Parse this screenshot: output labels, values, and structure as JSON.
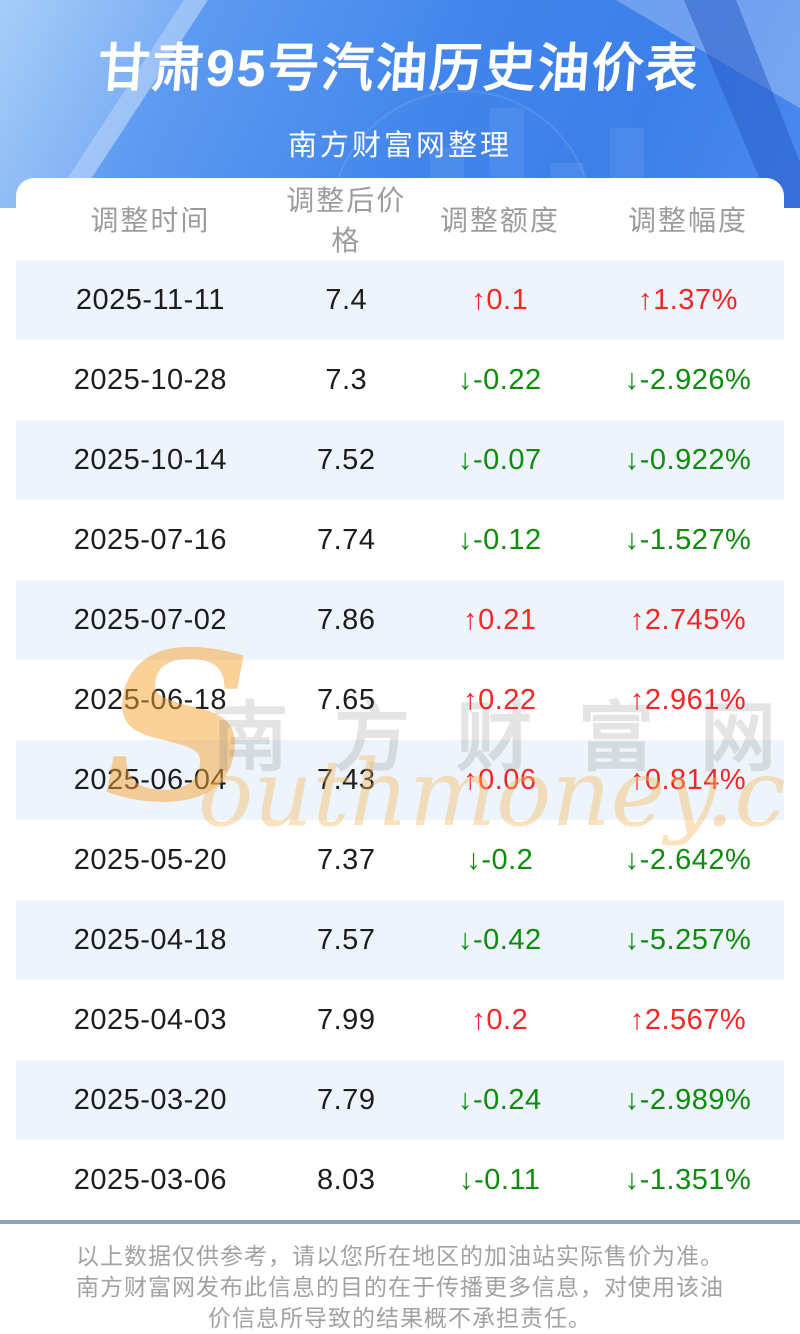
{
  "hero": {
    "title": "甘肃95号汽油历史油价表",
    "subtitle": "南方财富网整理"
  },
  "chart_data": {
    "type": "table",
    "title": "甘肃95号汽油历史油价表",
    "columns": [
      "调整时间",
      "调整后价格",
      "调整额度",
      "调整幅度"
    ],
    "rows": [
      {
        "date": "2025-11-11",
        "price": "7.4",
        "change": "↑0.1",
        "pct": "↑1.37%",
        "direction": "up"
      },
      {
        "date": "2025-10-28",
        "price": "7.3",
        "change": "↓-0.22",
        "pct": "↓-2.926%",
        "direction": "down"
      },
      {
        "date": "2025-10-14",
        "price": "7.52",
        "change": "↓-0.07",
        "pct": "↓-0.922%",
        "direction": "down"
      },
      {
        "date": "2025-07-16",
        "price": "7.74",
        "change": "↓-0.12",
        "pct": "↓-1.527%",
        "direction": "down"
      },
      {
        "date": "2025-07-02",
        "price": "7.86",
        "change": "↑0.21",
        "pct": "↑2.745%",
        "direction": "up"
      },
      {
        "date": "2025-06-18",
        "price": "7.65",
        "change": "↑0.22",
        "pct": "↑2.961%",
        "direction": "up"
      },
      {
        "date": "2025-06-04",
        "price": "7.43",
        "change": "↑0.06",
        "pct": "↑0.814%",
        "direction": "up"
      },
      {
        "date": "2025-05-20",
        "price": "7.37",
        "change": "↓-0.2",
        "pct": "↓-2.642%",
        "direction": "down"
      },
      {
        "date": "2025-04-18",
        "price": "7.57",
        "change": "↓-0.42",
        "pct": "↓-5.257%",
        "direction": "down"
      },
      {
        "date": "2025-04-03",
        "price": "7.99",
        "change": "↑0.2",
        "pct": "↑2.567%",
        "direction": "up"
      },
      {
        "date": "2025-03-20",
        "price": "7.79",
        "change": "↓-0.24",
        "pct": "↓-2.989%",
        "direction": "down"
      },
      {
        "date": "2025-03-06",
        "price": "8.03",
        "change": "↓-0.11",
        "pct": "↓-1.351%",
        "direction": "down"
      }
    ]
  },
  "watermark": {
    "initial": "S",
    "cn": "南方财富网",
    "en": "outhmoney.com"
  },
  "footer": {
    "disclaimer": "以上数据仅供参考，请以您所在地区的加油站实际售价为准。南方财富网发布此信息的目的在于传播更多信息，对使用该油价信息所导致的结果概不承担责任。"
  },
  "colors": {
    "up": "#f52626",
    "down": "#0e8c0e",
    "stripe": "#edf4fc",
    "hero_blue": "#3f81ea",
    "divider": "#8ca1bb"
  }
}
